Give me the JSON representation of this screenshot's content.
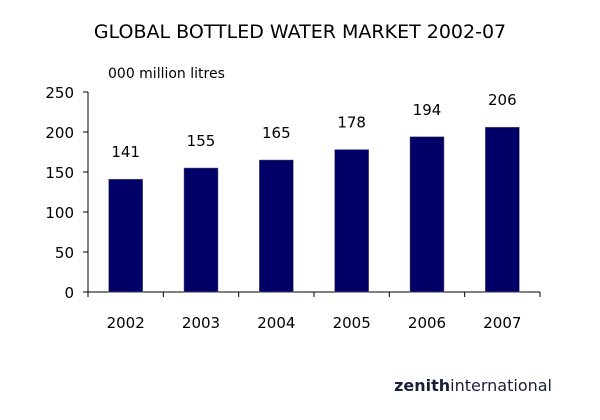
{
  "chart_data": {
    "type": "bar",
    "title": "GLOBAL BOTTLED WATER MARKET 2002-07",
    "unit_label": "000 million litres",
    "categories": [
      "2002",
      "2003",
      "2004",
      "2005",
      "2006",
      "2007"
    ],
    "values": [
      141,
      155,
      165,
      178,
      194,
      206
    ],
    "data_labels": [
      "141",
      "155",
      "165",
      "178",
      "194",
      "206"
    ],
    "ylim": [
      0,
      250
    ],
    "yticks": [
      0,
      50,
      100,
      150,
      200,
      250
    ],
    "ytick_labels": [
      "0",
      "50",
      "100",
      "150",
      "200",
      "250"
    ],
    "grid": false,
    "legend": "none",
    "bar_color": "#000066"
  },
  "logo": {
    "bold": "zenith",
    "regular": "international",
    "color": "#1a1f3a"
  }
}
